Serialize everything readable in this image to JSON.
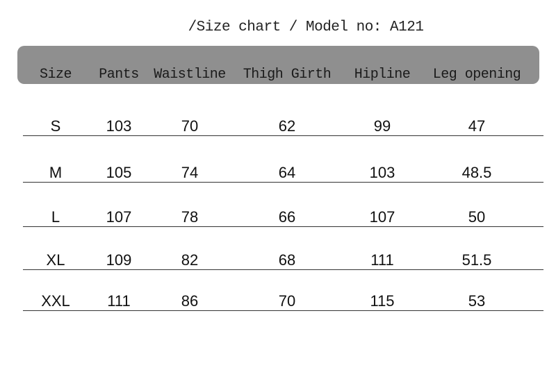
{
  "title": "/Size chart /  Model no: A121",
  "header_bg": "#8f8f8f",
  "columns": [
    "Size",
    "Pants",
    "Waistline",
    "Thigh Girth",
    "Hipline",
    "Leg opening"
  ],
  "rows": [
    [
      "S",
      "103",
      "70",
      "62",
      "99",
      "47"
    ],
    [
      "M",
      "105",
      "74",
      "64",
      "103",
      "48.5"
    ],
    [
      "L",
      "107",
      "78",
      "66",
      "107",
      "50"
    ],
    [
      "XL",
      "109",
      "82",
      "68",
      "111",
      "51.5"
    ],
    [
      "XXL",
      "111",
      "86",
      "70",
      "115",
      "53"
    ]
  ]
}
